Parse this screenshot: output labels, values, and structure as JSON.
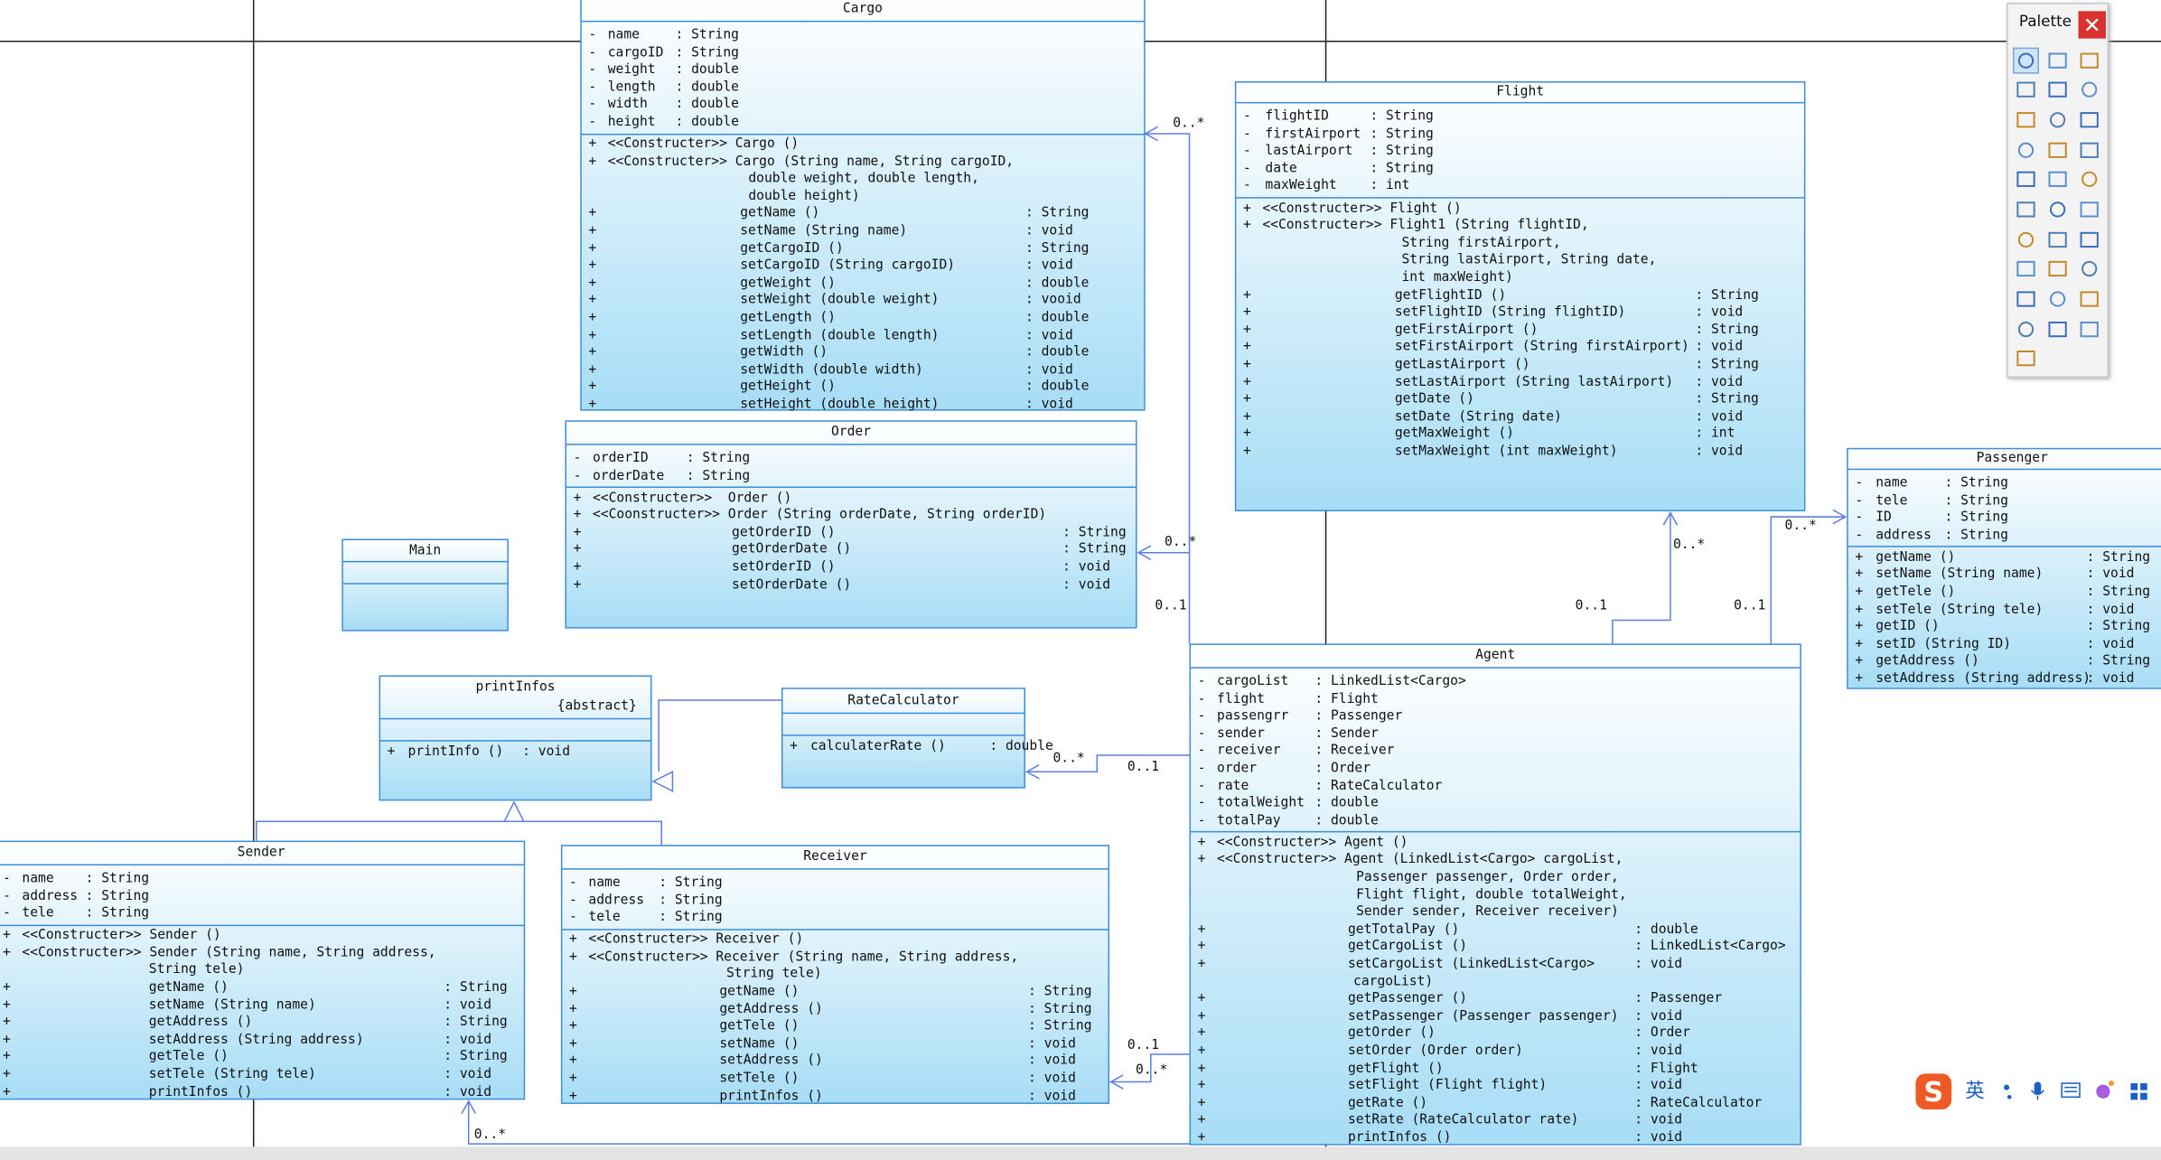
{
  "classes": [
    {
      "name": "Cargo",
      "attributes": [
        {
          "vis": "-",
          "name": "name",
          "type": ": String"
        },
        {
          "vis": "-",
          "name": "cargoID",
          "type": ": String"
        },
        {
          "vis": "-",
          "name": "weight",
          "type": ": double"
        },
        {
          "vis": "-",
          "name": "length",
          "type": ": double"
        },
        {
          "vis": "-",
          "name": "width",
          "type": ": double"
        },
        {
          "vis": "-",
          "name": "height",
          "type": ": double"
        }
      ],
      "operations": [
        {
          "vis": "+",
          "sig": "<<Constructer>> Cargo ()"
        },
        {
          "vis": "+",
          "sig": "<<Constructer>> Cargo (String name, String cargoID,",
          "cont": [
            "double weight, double length,",
            "double height)"
          ]
        },
        {
          "vis": "+",
          "sig": "getName ()",
          "ret": ": String"
        },
        {
          "vis": "+",
          "sig": "setName (String name)",
          "ret": ": void"
        },
        {
          "vis": "+",
          "sig": "getCargoID ()",
          "ret": ": String"
        },
        {
          "vis": "+",
          "sig": "setCargoID (String cargoID)",
          "ret": ": void"
        },
        {
          "vis": "+",
          "sig": "getWeight ()",
          "ret": ": double"
        },
        {
          "vis": "+",
          "sig": "setWeight (double weight)",
          "ret": ": vooid"
        },
        {
          "vis": "+",
          "sig": "getLength ()",
          "ret": ": double"
        },
        {
          "vis": "+",
          "sig": "setLength (double length)",
          "ret": ": void"
        },
        {
          "vis": "+",
          "sig": "getWidth ()",
          "ret": ": double"
        },
        {
          "vis": "+",
          "sig": "setWidth (double width)",
          "ret": ": void"
        },
        {
          "vis": "+",
          "sig": "getHeight ()",
          "ret": ": double"
        },
        {
          "vis": "+",
          "sig": "setHeight (double height)",
          "ret": ": void"
        }
      ]
    },
    {
      "name": "Flight",
      "attributes": [
        {
          "vis": "-",
          "name": "flightID",
          "type": ": String"
        },
        {
          "vis": "-",
          "name": "firstAirport",
          "type": ": String"
        },
        {
          "vis": "-",
          "name": "lastAirport",
          "type": ": String"
        },
        {
          "vis": "-",
          "name": "date",
          "type": ": String"
        },
        {
          "vis": "-",
          "name": "maxWeight",
          "type": ": int"
        }
      ],
      "operations": [
        {
          "vis": "+",
          "sig": "<<Constructer>> Flight ()"
        },
        {
          "vis": "+",
          "sig": "<<Constructer>> Flight1 (String flightID,",
          "cont": [
            "String firstAirport,",
            "String lastAirport, String date,",
            "int maxWeight)"
          ]
        },
        {
          "vis": "+",
          "sig": "getFlightID ()",
          "ret": ": String"
        },
        {
          "vis": "+",
          "sig": "setFlightID (String flightID)",
          "ret": ": void"
        },
        {
          "vis": "+",
          "sig": "getFirstAirport ()",
          "ret": ": String"
        },
        {
          "vis": "+",
          "sig": "setFirstAirport (String firstAirport)",
          "ret": ": void"
        },
        {
          "vis": "+",
          "sig": "getLastAirport ()",
          "ret": ": String"
        },
        {
          "vis": "+",
          "sig": "setLastAirport (String lastAirport)",
          "ret": ": void"
        },
        {
          "vis": "+",
          "sig": "getDate ()",
          "ret": ": String"
        },
        {
          "vis": "+",
          "sig": "setDate (String date)",
          "ret": ": void"
        },
        {
          "vis": "+",
          "sig": "getMaxWeight ()",
          "ret": ": int"
        },
        {
          "vis": "+",
          "sig": "setMaxWeight (int maxWeight)",
          "ret": ": void"
        }
      ]
    },
    {
      "name": "Passenger",
      "attributes": [
        {
          "vis": "-",
          "name": "name",
          "type": ": String"
        },
        {
          "vis": "-",
          "name": "tele",
          "type": ": String"
        },
        {
          "vis": "-",
          "name": "ID",
          "type": ": String"
        },
        {
          "vis": "-",
          "name": "address",
          "type": ": String"
        }
      ],
      "operations": [
        {
          "vis": "+",
          "sig": "getName ()",
          "ret": ": String"
        },
        {
          "vis": "+",
          "sig": "setName (String name)",
          "ret": ": void"
        },
        {
          "vis": "+",
          "sig": "getTele ()",
          "ret": ": String"
        },
        {
          "vis": "+",
          "sig": "setTele (String tele)",
          "ret": ": void"
        },
        {
          "vis": "+",
          "sig": "getID ()",
          "ret": ": String"
        },
        {
          "vis": "+",
          "sig": "setID (String ID)",
          "ret": ": void"
        },
        {
          "vis": "+",
          "sig": "getAddress ()",
          "ret": ": String"
        },
        {
          "vis": "+",
          "sig": "setAddress (String address)",
          "ret": ": void"
        }
      ]
    },
    {
      "name": "Order",
      "attributes": [
        {
          "vis": "-",
          "name": "orderID",
          "type": ": String"
        },
        {
          "vis": "-",
          "name": "orderDate",
          "type": ": String"
        }
      ],
      "operations": [
        {
          "vis": "+",
          "sig": "<<Constructer>>  Order ()"
        },
        {
          "vis": "+",
          "sig": "<<Coonstructer>> Order (String orderDate, String orderID)"
        },
        {
          "vis": "+",
          "sig": "getOrderID ()",
          "ret": ": String"
        },
        {
          "vis": "+",
          "sig": "getOrderDate ()",
          "ret": ": String"
        },
        {
          "vis": "+",
          "sig": "setOrderID ()",
          "ret": ": void"
        },
        {
          "vis": "+",
          "sig": "setOrderDate ()",
          "ret": ": void"
        }
      ]
    },
    {
      "name": "Main",
      "attributes": [],
      "operations": []
    },
    {
      "name": "printInfos",
      "stereotype": "{abstract}",
      "attributes": [],
      "operations": [
        {
          "vis": "+",
          "sig": "printInfo ()",
          "ret": ": void"
        }
      ]
    },
    {
      "name": "RateCalculator",
      "attributes": [],
      "operations": [
        {
          "vis": "+",
          "sig": "calculaterRate ()",
          "ret": ": double"
        }
      ]
    },
    {
      "name": "Agent",
      "attributes": [
        {
          "vis": "-",
          "name": "cargoList",
          "type": ": LinkedList<Cargo>"
        },
        {
          "vis": "-",
          "name": "flight",
          "type": ": Flight"
        },
        {
          "vis": "-",
          "name": "passengrr",
          "type": ": Passenger"
        },
        {
          "vis": "-",
          "name": "sender",
          "type": ": Sender"
        },
        {
          "vis": "-",
          "name": "receiver",
          "type": ": Receiver"
        },
        {
          "vis": "-",
          "name": "order",
          "type": ": Order"
        },
        {
          "vis": "-",
          "name": "rate",
          "type": ": RateCalculator"
        },
        {
          "vis": "-",
          "name": "totalWeight",
          "type": ": double"
        },
        {
          "vis": "-",
          "name": "totalPay",
          "type": ": double"
        }
      ],
      "operations": [
        {
          "vis": "+",
          "sig": "<<Constructer>> Agent ()"
        },
        {
          "vis": "+",
          "sig": "<<Constructer>> Agent (LinkedList<Cargo> cargoList,",
          "cont": [
            "Passenger passenger, Order order,",
            "Flight flight, double totalWeight,",
            "Sender sender, Receiver receiver)"
          ]
        },
        {
          "vis": "+",
          "sig": "getTotalPay ()",
          "ret": ": double"
        },
        {
          "vis": "+",
          "sig": "getCargoList ()",
          "ret": ": LinkedList<Cargo>"
        },
        {
          "vis": "+",
          "sig": "setCargoList (LinkedList<Cargo>",
          "cont": [
            "cargoList)"
          ],
          "ret": ": void"
        },
        {
          "vis": "+",
          "sig": "getPassenger ()",
          "ret": ": Passenger"
        },
        {
          "vis": "+",
          "sig": "setPassenger (Passenger passenger)",
          "ret": ": void"
        },
        {
          "vis": "+",
          "sig": "getOrder ()",
          "ret": ": Order"
        },
        {
          "vis": "+",
          "sig": "setOrder (Order order)",
          "ret": ": void"
        },
        {
          "vis": "+",
          "sig": "getFlight ()",
          "ret": ": Flight"
        },
        {
          "vis": "+",
          "sig": "setFlight (Flight flight)",
          "ret": ": void"
        },
        {
          "vis": "+",
          "sig": "getRate ()",
          "ret": ": RateCalculator"
        },
        {
          "vis": "+",
          "sig": "setRate (RateCalculator rate)",
          "ret": ": void"
        },
        {
          "vis": "+",
          "sig": "printInfos ()",
          "ret": ": void"
        }
      ]
    },
    {
      "name": "Sender",
      "attributes": [
        {
          "vis": "-",
          "name": "name",
          "type": ": String"
        },
        {
          "vis": "-",
          "name": "address",
          "type": ": String"
        },
        {
          "vis": "-",
          "name": "tele",
          "type": ": String"
        }
      ],
      "operations": [
        {
          "vis": "+",
          "sig": "<<Constructer>> Sender ()"
        },
        {
          "vis": "+",
          "sig": "<<Constructer>> Sender (String name, String address,",
          "cont": [
            "String tele)"
          ]
        },
        {
          "vis": "+",
          "sig": "getName ()",
          "ret": ": String"
        },
        {
          "vis": "+",
          "sig": "setName (String name)",
          "ret": ": void"
        },
        {
          "vis": "+",
          "sig": "getAddress ()",
          "ret": ": String"
        },
        {
          "vis": "+",
          "sig": "setAddress (String address)",
          "ret": ": void"
        },
        {
          "vis": "+",
          "sig": "getTele ()",
          "ret": ": String"
        },
        {
          "vis": "+",
          "sig": "setTele (String tele)",
          "ret": ": void"
        },
        {
          "vis": "+",
          "sig": "printInfos ()",
          "ret": ": void"
        }
      ]
    },
    {
      "name": "Receiver",
      "attributes": [
        {
          "vis": "-",
          "name": "name",
          "type": ": String"
        },
        {
          "vis": "-",
          "name": "address",
          "type": ": String"
        },
        {
          "vis": "-",
          "name": "tele",
          "type": ": String"
        }
      ],
      "operations": [
        {
          "vis": "+",
          "sig": "<<Constructer>> Receiver ()"
        },
        {
          "vis": "+",
          "sig": "<<Constructer>> Receiver (String name, String address,",
          "cont": [
            "String tele)"
          ]
        },
        {
          "vis": "+",
          "sig": "getName ()",
          "ret": ": String"
        },
        {
          "vis": "+",
          "sig": "getAddress ()",
          "ret": ": String"
        },
        {
          "vis": "+",
          "sig": "getTele ()",
          "ret": ": String"
        },
        {
          "vis": "+",
          "sig": "setName ()",
          "ret": ": void"
        },
        {
          "vis": "+",
          "sig": "setAddress ()",
          "ret": ": void"
        },
        {
          "vis": "+",
          "sig": "setTele ()",
          "ret": ": void"
        },
        {
          "vis": "+",
          "sig": "printInfos ()",
          "ret": ": void"
        }
      ]
    }
  ],
  "multiplicities": [
    "0..*",
    "0..*",
    "0..1",
    "0..*",
    "0..1",
    "0..*",
    "0..1",
    "0..*",
    "0..1",
    "0..1",
    "0..*",
    "0..*"
  ],
  "palette": {
    "title": "Palette"
  },
  "ime": {
    "logo": "S",
    "label": "英"
  }
}
